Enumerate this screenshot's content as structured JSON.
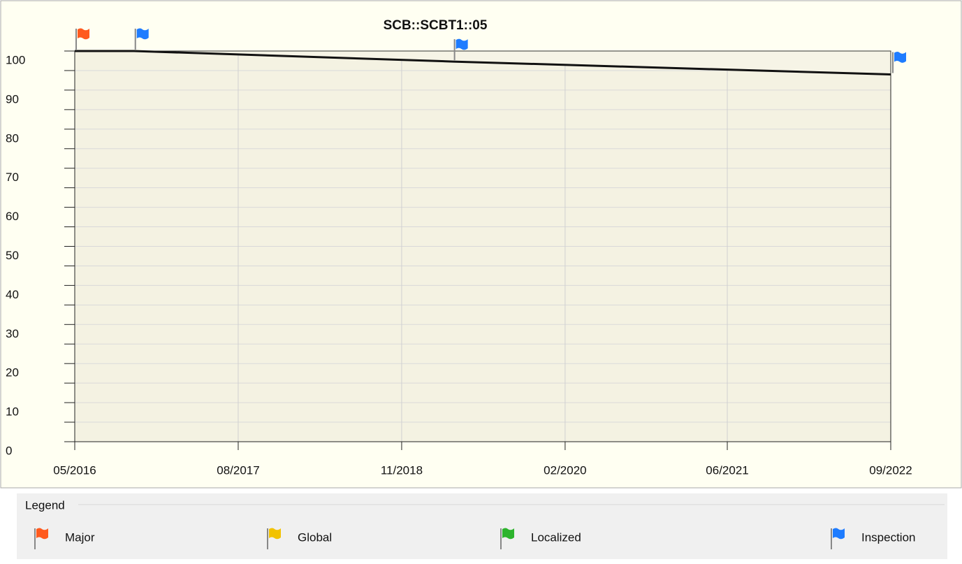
{
  "chart_data": {
    "type": "line",
    "title": "SCB::SCBT1::05",
    "xlim": [
      2016.33,
      2022.67
    ],
    "xticks": [
      {
        "value": 2016.33,
        "label": "05/2016"
      },
      {
        "value": 2017.6,
        "label": "08/2017"
      },
      {
        "value": 2018.87,
        "label": "11/2018"
      },
      {
        "value": 2020.14,
        "label": "02/2020"
      },
      {
        "value": 2021.4,
        "label": "06/2021"
      },
      {
        "value": 2022.67,
        "label": "09/2022"
      }
    ],
    "ylim": [
      0,
      100
    ],
    "yticks": [
      0,
      10,
      20,
      30,
      40,
      50,
      60,
      70,
      80,
      90,
      100
    ],
    "yminor_ticks": [
      5,
      15,
      25,
      35,
      45,
      55,
      65,
      75,
      85,
      95
    ],
    "grid": true,
    "line": {
      "color": "#111111",
      "x": [
        2016.33,
        2016.79,
        2019.27,
        2022.67
      ],
      "values": [
        100,
        100,
        97.3,
        94
      ]
    },
    "legend_title": "Legend",
    "series": [
      {
        "name": "Major",
        "color": "#ff5a1e",
        "x": [
          2016.33
        ],
        "values": [
          100
        ]
      },
      {
        "name": "Global",
        "color": "#f2c200",
        "x": [],
        "values": []
      },
      {
        "name": "Localized",
        "color": "#2db42d",
        "x": [],
        "values": []
      },
      {
        "name": "Inspection",
        "color": "#1e7cff",
        "x": [
          2016.79,
          2019.27,
          2022.67
        ],
        "values": [
          100,
          97.3,
          94
        ]
      }
    ]
  }
}
